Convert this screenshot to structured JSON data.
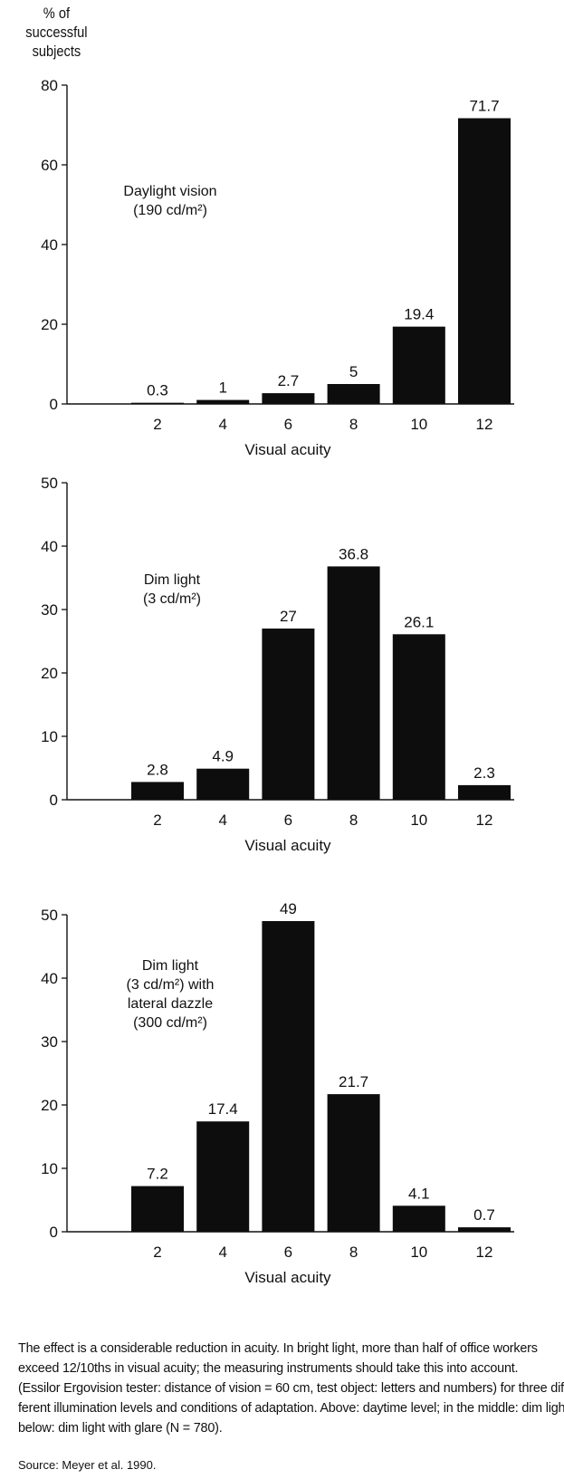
{
  "ylabel_lines": [
    "% of",
    "successful",
    "subjects"
  ],
  "chart_data": [
    {
      "type": "bar",
      "categories": [
        "2",
        "4",
        "6",
        "8",
        "10",
        "12"
      ],
      "values": [
        0.3,
        1,
        2.7,
        5,
        19.4,
        71.7
      ],
      "value_labels": [
        "0.3",
        "1",
        "2.7",
        "5",
        "19.4",
        "71.7"
      ],
      "ylim": [
        0,
        80
      ],
      "yticks": [
        "0",
        "20",
        "40",
        "60",
        "80"
      ],
      "xlabel": "Visual acuity",
      "annotation": [
        "Daylight vision",
        "(190 cd/m²)"
      ]
    },
    {
      "type": "bar",
      "categories": [
        "2",
        "4",
        "6",
        "8",
        "10",
        "12"
      ],
      "values": [
        2.8,
        4.9,
        27,
        36.8,
        26.1,
        2.3
      ],
      "value_labels": [
        "2.8",
        "4.9",
        "27",
        "36.8",
        "26.1",
        "2.3"
      ],
      "ylim": [
        0,
        50
      ],
      "yticks": [
        "0",
        "10",
        "20",
        "30",
        "40",
        "50"
      ],
      "xlabel": "Visual acuity",
      "annotation": [
        "Dim light",
        "(3 cd/m²)"
      ]
    },
    {
      "type": "bar",
      "categories": [
        "2",
        "4",
        "6",
        "8",
        "10",
        "12"
      ],
      "values": [
        7.2,
        17.4,
        49,
        21.7,
        4.1,
        0.7
      ],
      "value_labels": [
        "7.2",
        "17.4",
        "49",
        "21.7",
        "4.1",
        "0.7"
      ],
      "ylim": [
        0,
        50
      ],
      "yticks": [
        "0",
        "10",
        "20",
        "30",
        "40",
        "50"
      ],
      "xlabel": "Visual acuity",
      "annotation": [
        "Dim light",
        "(3 cd/m²) with",
        "lateral dazzle",
        "(300 cd/m²)"
      ]
    }
  ],
  "caption_lines": [
    "The effect is a considerable reduction in acuity. In bright light, more than half of office workers",
    "exceed 12/10ths in visual acuity; the measuring instruments should take this into account.",
    "(Essilor Ergovision tester: distance of vision = 60 cm, test object: letters and numbers) for three dif-",
    "ferent illumination levels and conditions of adaptation. Above: daytime level; in the middle: dim light;",
    "below: dim light with glare (N = 780)."
  ],
  "source": "Source: Meyer et al. 1990.",
  "colors": {
    "bar": "#0d0d0d",
    "axis": "#111111",
    "text": "#111111"
  }
}
